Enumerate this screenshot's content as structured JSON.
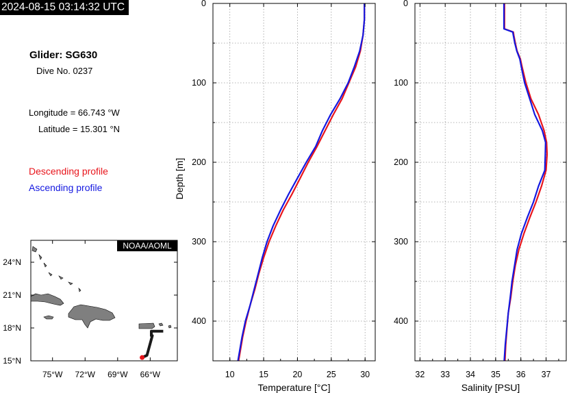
{
  "header": {
    "timestamp": "2024-08-15 03:14:32 UTC"
  },
  "info": {
    "glider": "Glider: SG630",
    "dive": "Dive No. 0237",
    "longitude": "Longitude = 66.743 °W",
    "latitude": "Latitude = 15.301 °N"
  },
  "legend": {
    "descending": "Descending profile",
    "ascending": "Ascending profile"
  },
  "colors": {
    "descending": "#e8141b",
    "ascending": "#1418e0",
    "land": "#7f7f7f",
    "track": "#1a1a1a"
  },
  "map": {
    "credit": "NOAA/AOML",
    "lat_ticks": [
      "24°N",
      "21°N",
      "18°N",
      "15°N"
    ],
    "lon_ticks": [
      "75°W",
      "72°W",
      "69°W",
      "66°W"
    ],
    "lon_range": [
      -77,
      -63.5
    ],
    "lat_range": [
      15,
      26
    ],
    "track": [
      [
        -64.8,
        17.7
      ],
      [
        -65.9,
        17.7
      ],
      [
        -65.9,
        17.3
      ],
      [
        -65.8,
        17.3
      ],
      [
        -66.3,
        15.5
      ],
      [
        -66.743,
        15.301
      ]
    ],
    "position": [
      -66.743,
      15.301
    ]
  },
  "chart_data": [
    {
      "type": "line",
      "xlabel": "Temperature [°C]",
      "ylabel": "Depth [m]",
      "xlim": [
        7.5,
        31.5
      ],
      "ylim": [
        450,
        0
      ],
      "xticks": [
        "10",
        "15",
        "20",
        "25",
        "30"
      ],
      "xtick_values": [
        10,
        15,
        20,
        25,
        30
      ],
      "yticks": [
        "0",
        "100",
        "200",
        "300",
        "400"
      ],
      "ytick_values": [
        0,
        100,
        200,
        300,
        400
      ],
      "grid": true,
      "series": [
        {
          "name": "Descending profile",
          "color": "#e8141b",
          "depth": [
            0,
            20,
            40,
            60,
            80,
            100,
            120,
            140,
            160,
            180,
            200,
            220,
            240,
            260,
            280,
            300,
            320,
            340,
            360,
            380,
            400,
            420,
            450
          ],
          "values": [
            29.9,
            29.9,
            29.7,
            29.3,
            28.6,
            27.6,
            26.6,
            25.3,
            24.1,
            22.9,
            21.6,
            20.4,
            19.2,
            17.9,
            16.8,
            15.8,
            15.0,
            14.3,
            13.7,
            13.0,
            12.4,
            11.9,
            11.3
          ]
        },
        {
          "name": "Ascending profile",
          "color": "#1418e0",
          "depth": [
            0,
            20,
            40,
            60,
            80,
            100,
            120,
            140,
            160,
            180,
            200,
            220,
            240,
            260,
            280,
            300,
            320,
            340,
            360,
            380,
            400,
            420,
            450
          ],
          "values": [
            29.9,
            29.9,
            29.7,
            29.2,
            28.4,
            27.5,
            26.3,
            24.9,
            23.7,
            22.7,
            21.3,
            20.0,
            18.7,
            17.5,
            16.4,
            15.5,
            14.8,
            14.2,
            13.6,
            13.0,
            12.3,
            11.8,
            11.2
          ]
        }
      ]
    },
    {
      "type": "line",
      "xlabel": "Salinity [PSU]",
      "ylabel": "",
      "xlim": [
        31.8,
        37.8
      ],
      "ylim": [
        450,
        0
      ],
      "xticks": [
        "32",
        "33",
        "34",
        "35",
        "36",
        "37"
      ],
      "xtick_values": [
        32,
        33,
        34,
        35,
        36,
        37
      ],
      "yticks": [
        "0",
        "100",
        "200",
        "300",
        "400"
      ],
      "ytick_values": [
        0,
        100,
        200,
        300,
        400
      ],
      "grid": true,
      "series": [
        {
          "name": "Descending profile",
          "color": "#e8141b",
          "depth": [
            0,
            20,
            32,
            36,
            40,
            50,
            60,
            70,
            80,
            100,
            120,
            140,
            160,
            175,
            190,
            210,
            230,
            250,
            270,
            290,
            310,
            330,
            350,
            370,
            390,
            410,
            430,
            450
          ],
          "values": [
            35.35,
            35.35,
            35.35,
            35.7,
            35.72,
            35.78,
            35.85,
            35.98,
            36.05,
            36.2,
            36.4,
            36.7,
            36.92,
            37.02,
            37.04,
            37.0,
            36.82,
            36.6,
            36.35,
            36.12,
            35.92,
            35.78,
            35.68,
            35.6,
            35.5,
            35.45,
            35.4,
            35.37
          ]
        },
        {
          "name": "Ascending profile",
          "color": "#1418e0",
          "depth": [
            0,
            20,
            32,
            36,
            40,
            50,
            60,
            70,
            80,
            100,
            120,
            140,
            160,
            175,
            190,
            210,
            230,
            250,
            270,
            290,
            310,
            330,
            350,
            370,
            390,
            410,
            430,
            450
          ],
          "values": [
            35.33,
            35.33,
            35.33,
            35.68,
            35.7,
            35.76,
            35.84,
            35.96,
            36.02,
            36.15,
            36.35,
            36.55,
            36.85,
            36.98,
            36.97,
            36.95,
            36.7,
            36.5,
            36.25,
            36.02,
            35.85,
            35.75,
            35.65,
            35.58,
            35.5,
            35.44,
            35.38,
            35.34
          ]
        }
      ]
    }
  ]
}
